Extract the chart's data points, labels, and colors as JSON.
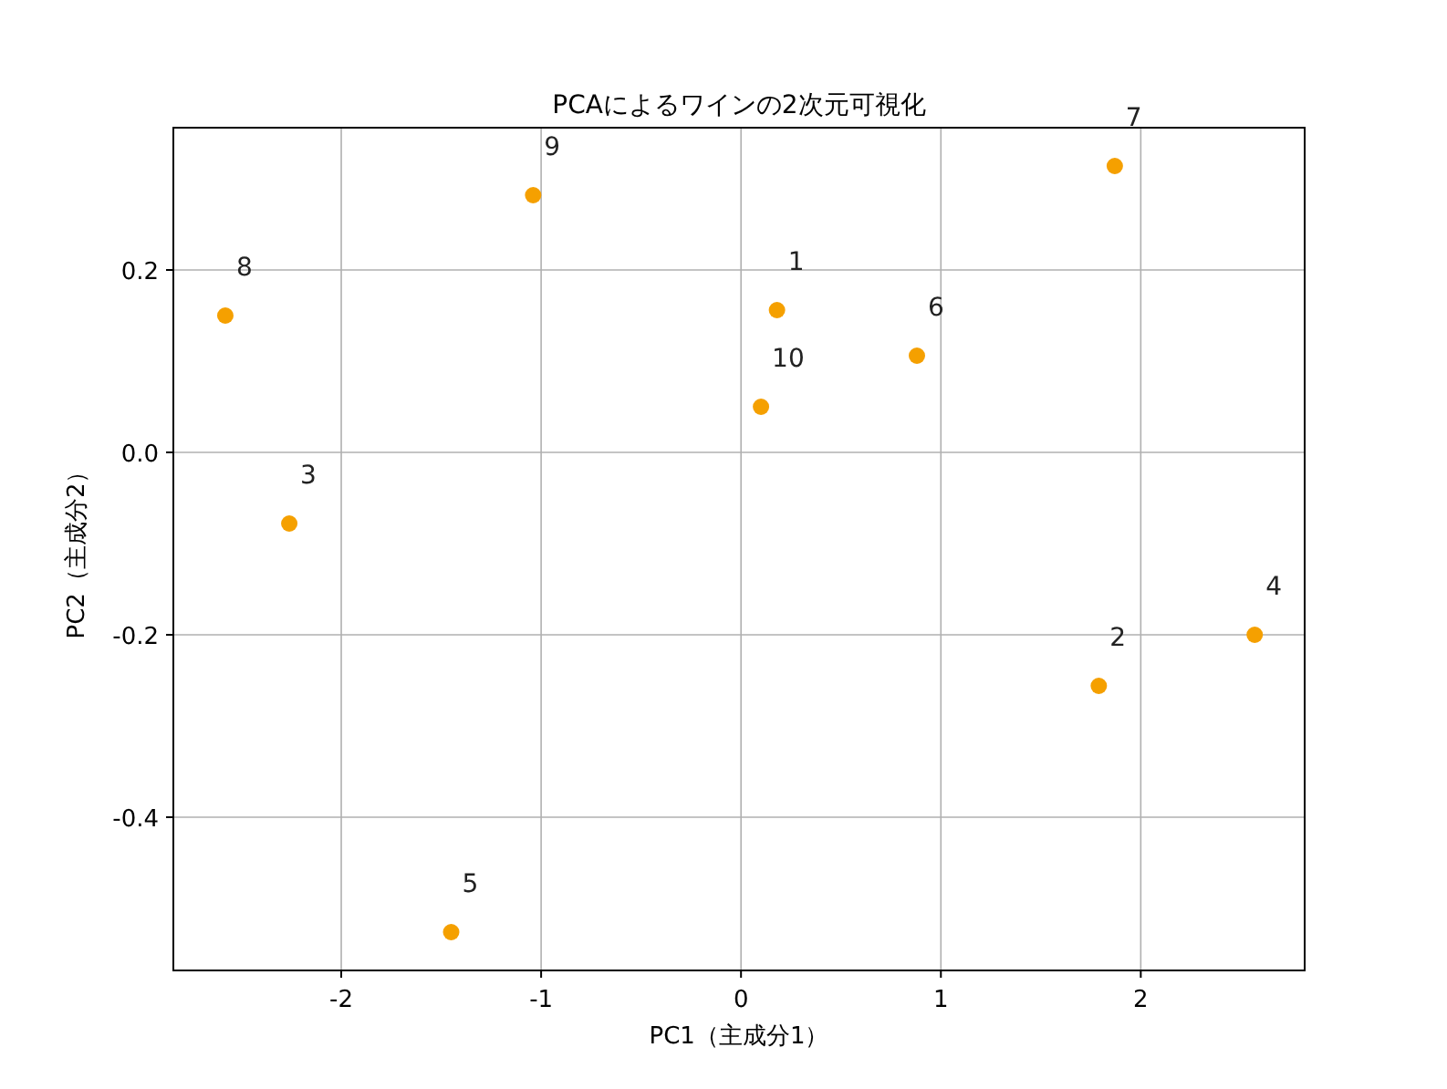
{
  "chart_data": {
    "type": "scatter",
    "title": "PCAによるワインの2次元可視化",
    "xlabel": "PC1（主成分1）",
    "ylabel": "PC2（主成分2）",
    "x": [
      0.18,
      1.79,
      -2.26,
      2.57,
      -1.45,
      0.88,
      1.87,
      -2.58,
      -1.04,
      0.1
    ],
    "series": [
      {
        "color": "#f5a000",
        "values": [
          0.156,
          -0.256,
          -0.078,
          -0.2,
          -0.526,
          0.106,
          0.314,
          0.15,
          0.282,
          0.05
        ]
      }
    ],
    "annotations": [
      {
        "text": "1",
        "x": 0.18,
        "y": 0.156
      },
      {
        "text": "2",
        "x": 1.79,
        "y": -0.256
      },
      {
        "text": "3",
        "x": -2.26,
        "y": -0.078
      },
      {
        "text": "4",
        "x": 2.57,
        "y": -0.2
      },
      {
        "text": "5",
        "x": -1.45,
        "y": -0.526
      },
      {
        "text": "6",
        "x": 0.88,
        "y": 0.106
      },
      {
        "text": "7",
        "x": 1.87,
        "y": 0.314
      },
      {
        "text": "8",
        "x": -2.58,
        "y": 0.15
      },
      {
        "text": "9",
        "x": -1.04,
        "y": 0.282
      },
      {
        "text": "10",
        "x": 0.1,
        "y": 0.05
      }
    ],
    "xlim": [
      -2.84,
      2.82
    ],
    "ylim": [
      -0.568,
      0.356
    ],
    "xticks": [
      -2,
      -1,
      0,
      1,
      2
    ],
    "yticks": [
      {
        "value": -0.4,
        "label": "-0.4"
      },
      {
        "value": -0.2,
        "label": "-0.2"
      },
      {
        "value": 0,
        "label": "0.0"
      },
      {
        "value": 0.2,
        "label": "0.2"
      }
    ],
    "grid": true,
    "marker": "circle"
  }
}
